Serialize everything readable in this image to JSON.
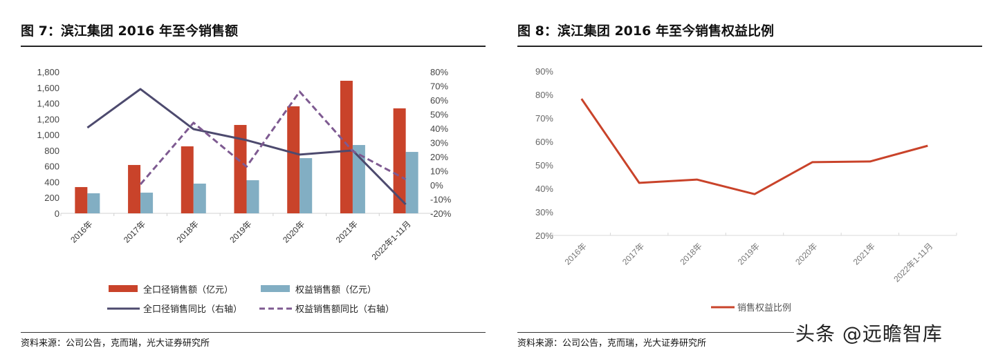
{
  "left": {
    "title": "图 7：滨江集团 2016 年至今销售额",
    "source": "资料来源：公司公告，克而瑞，光大证券研究所"
  },
  "right": {
    "title": "图 8：滨江集团 2016 年至今销售权益比例",
    "source": "资料来源：公司公告，克而瑞，光大证券研究所"
  },
  "watermark": "头条 @远瞻智库",
  "chart_data": [
    {
      "type": "bar",
      "categories": [
        "2016年",
        "2017年",
        "2018年",
        "2019年",
        "2020年",
        "2021年",
        "2022年1-11月"
      ],
      "ylim": [
        0,
        1800
      ],
      "yticks": [
        "0",
        "200",
        "400",
        "600",
        "800",
        "1,000",
        "1,200",
        "1,400",
        "1,600",
        "1,800"
      ],
      "y2lim": [
        -20,
        80
      ],
      "y2ticks": [
        "-20%",
        "-10%",
        "0%",
        "10%",
        "20%",
        "30%",
        "40%",
        "50%",
        "60%",
        "70%",
        "80%"
      ],
      "grid": false,
      "legend_placement": "bottom",
      "series": [
        {
          "name": "全口径销售额（亿元）",
          "kind": "bar",
          "axis": "left",
          "color": "#c9432a",
          "values": [
            334,
            615,
            852,
            1124,
            1361,
            1686,
            1335
          ]
        },
        {
          "name": "权益销售额（亿元）",
          "kind": "bar",
          "axis": "left",
          "color": "#82aec3",
          "values": [
            255,
            263,
            378,
            421,
            702,
            869,
            781
          ]
        },
        {
          "name": "全口径销售同比（右轴）",
          "kind": "line",
          "axis": "right",
          "color": "#4d4a6e",
          "values": [
            40.5,
            67.8,
            39.5,
            31.7,
            21.5,
            24.4,
            -13.7
          ]
        },
        {
          "name": "权益销售额同比（右轴）",
          "kind": "dashed-line",
          "axis": "right",
          "color": "#7e5a91",
          "values": [
            null,
            0.5,
            44,
            13,
            66,
            24,
            4
          ]
        }
      ]
    },
    {
      "type": "line",
      "categories": [
        "2016年",
        "2017年",
        "2018年",
        "2019年",
        "2020年",
        "2021年",
        "2022年1-11月"
      ],
      "ylim": [
        20,
        90
      ],
      "yticks": [
        "20%",
        "30%",
        "40%",
        "50%",
        "60%",
        "70%",
        "80%",
        "90%"
      ],
      "grid": false,
      "legend_placement": "bottom",
      "series": [
        {
          "name": "销售权益比例",
          "color": "#c9432a",
          "values": [
            78.2,
            42.4,
            43.8,
            37.6,
            51.2,
            51.5,
            58.2
          ]
        }
      ]
    }
  ]
}
